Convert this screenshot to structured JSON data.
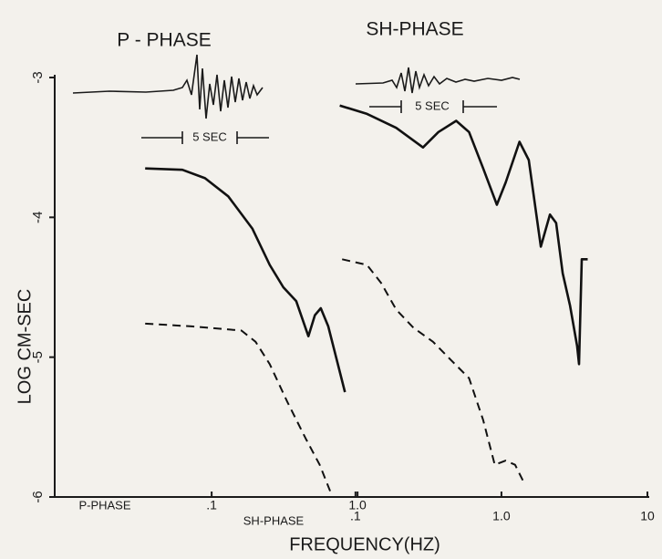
{
  "chart_data": {
    "type": "line",
    "panel_titles": [
      "P - PHASE",
      "SH-PHASE"
    ],
    "annotations": [
      "5 SEC",
      "5 SEC"
    ],
    "ylabel": "LOG CM-SEC",
    "xlabel": "FREQUENCY(HZ)",
    "ylim": [
      -6,
      -3
    ],
    "yticks": [
      -3,
      -4,
      -5,
      -6
    ],
    "xlog": true,
    "x_axes": [
      {
        "name": "P-PHASE",
        "xlim": [
          0.0084,
          97
        ],
        "xticks": [
          {
            "value": 0.1,
            "label": ".1"
          },
          {
            "value": 1,
            "label": "1.0"
          }
        ]
      },
      {
        "name": "SH-PHASE",
        "xlim": [
          0.00087,
          10
        ],
        "xticks": [
          {
            "value": 0.1,
            "label": ".1"
          },
          {
            "value": 1,
            "label": "1.0"
          },
          {
            "value": 10,
            "label": "10"
          }
        ]
      }
    ],
    "series": [
      {
        "xaxis": 0,
        "color": "#111111",
        "dashed": false,
        "x": [
          0.035,
          0.063,
          0.09,
          0.13,
          0.19,
          0.25,
          0.31,
          0.38,
          0.46,
          0.51,
          0.56,
          0.63,
          0.82
        ],
        "values": [
          -3.65,
          -3.66,
          -3.72,
          -3.85,
          -4.08,
          -4.34,
          -4.5,
          -4.6,
          -4.85,
          -4.7,
          -4.65,
          -4.78,
          -5.25
        ]
      },
      {
        "xaxis": 0,
        "color": "#111111",
        "dashed": true,
        "x": [
          0.035,
          0.073,
          0.16,
          0.2,
          0.25,
          0.33,
          0.44,
          0.55,
          0.65
        ],
        "values": [
          -4.76,
          -4.78,
          -4.81,
          -4.89,
          -5.05,
          -5.32,
          -5.58,
          -5.77,
          -5.96
        ]
      },
      {
        "xaxis": 1,
        "color": "#111111",
        "dashed": false,
        "x": [
          0.078,
          0.12,
          0.19,
          0.29,
          0.37,
          0.49,
          0.6,
          0.75,
          0.93,
          1.07,
          1.33,
          1.54,
          1.86,
          2.15,
          2.37,
          2.63,
          2.95,
          3.3,
          3.4,
          3.55,
          3.9
        ],
        "values": [
          -3.2,
          -3.26,
          -3.36,
          -3.5,
          -3.39,
          -3.31,
          -3.39,
          -3.65,
          -3.91,
          -3.75,
          -3.46,
          -3.59,
          -4.21,
          -3.98,
          -4.04,
          -4.4,
          -4.63,
          -4.92,
          -5.05,
          -4.3,
          -4.3
        ]
      },
      {
        "xaxis": 1,
        "color": "#111111",
        "dashed": true,
        "x": [
          0.081,
          0.12,
          0.15,
          0.19,
          0.25,
          0.34,
          0.45,
          0.6,
          0.75,
          0.9,
          1.07,
          1.24,
          1.43
        ],
        "values": [
          -4.3,
          -4.34,
          -4.47,
          -4.66,
          -4.79,
          -4.89,
          -5.02,
          -5.15,
          -5.45,
          -5.77,
          -5.74,
          -5.77,
          -5.9
        ]
      }
    ]
  }
}
